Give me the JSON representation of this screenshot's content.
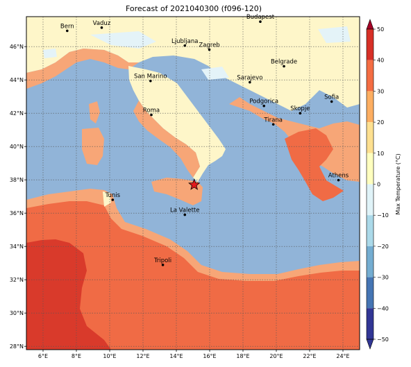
{
  "title": "Forecast of 2021040300 (f096-120)",
  "colorbar": {
    "label": "Max Temperature (°C)",
    "ticks": [
      "50",
      "40",
      "30",
      "20",
      "10",
      "0",
      "−10",
      "−20",
      "−30",
      "−40",
      "−50"
    ],
    "colors": [
      "#a50026",
      "#d73027",
      "#f46d43",
      "#fdae61",
      "#fee090",
      "#ffffbf",
      "#e0f3f8",
      "#abd9e9",
      "#74add1",
      "#4575b4",
      "#313695"
    ]
  },
  "axes": {
    "lon_ticks": [
      "6°E",
      "8°E",
      "10°E",
      "12°E",
      "14°E",
      "16°E",
      "18°E",
      "20°E",
      "22°E",
      "24°E"
    ],
    "lat_ticks": [
      "46°N",
      "44°N",
      "42°N",
      "40°N",
      "38°N",
      "36°N",
      "34°N",
      "32°N",
      "30°N",
      "28°N"
    ],
    "lon_range": [
      5,
      25
    ],
    "lat_range": [
      27.8,
      47.8
    ]
  },
  "cities": [
    {
      "name": "Bern",
      "lon": 7.45,
      "lat": 46.95
    },
    {
      "name": "Vaduz",
      "lon": 9.52,
      "lat": 47.14
    },
    {
      "name": "Budapest",
      "lon": 19.04,
      "lat": 47.5
    },
    {
      "name": "Ljubljana",
      "lon": 14.51,
      "lat": 46.06
    },
    {
      "name": "Zagreb",
      "lon": 15.98,
      "lat": 45.82
    },
    {
      "name": "Belgrade",
      "lon": 20.46,
      "lat": 44.82
    },
    {
      "name": "San Marino",
      "lon": 12.45,
      "lat": 43.94
    },
    {
      "name": "Sarajevo",
      "lon": 18.41,
      "lat": 43.86
    },
    {
      "name": "Sofia",
      "lon": 23.32,
      "lat": 42.7
    },
    {
      "name": "Podgorica",
      "lon": 19.26,
      "lat": 42.44
    },
    {
      "name": "Skopje",
      "lon": 21.43,
      "lat": 42.0
    },
    {
      "name": "Roma",
      "lon": 12.5,
      "lat": 41.9
    },
    {
      "name": "Tirana",
      "lon": 19.82,
      "lat": 41.33
    },
    {
      "name": "Athens",
      "lon": 23.73,
      "lat": 37.98
    },
    {
      "name": "Tunis",
      "lon": 10.18,
      "lat": 36.8
    },
    {
      "name": "La Valette",
      "lon": 14.51,
      "lat": 35.9
    },
    {
      "name": "Tripoli",
      "lon": 13.19,
      "lat": 32.89
    }
  ],
  "marker": {
    "type": "star",
    "lon": 15.07,
    "lat": 37.7,
    "color": "#e31a1c"
  },
  "colors": {
    "sea": "#91b4d8",
    "land_warm": "#fef6c9",
    "land_mid": "#f7a677",
    "land_hot": "#f06b45",
    "land_hotter": "#d93a2b",
    "cold": "#e4f3f8"
  }
}
